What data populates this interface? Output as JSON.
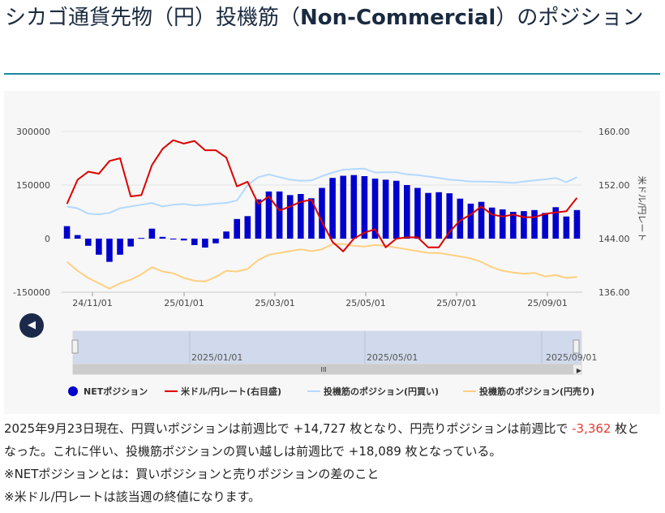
{
  "page": {
    "title_prefix": "シカゴ通貨先物（円）投機筋（",
    "title_bold": "Non-Commercial",
    "title_suffix": "）のポジション"
  },
  "chart_data": {
    "type": "bar+line",
    "x_ticks": [
      "24/11/01",
      "25/01/01",
      "25/03/01",
      "25/05/01",
      "25/07/01",
      "25/09/01"
    ],
    "left_axis": {
      "ticks": [
        "300000",
        "150000",
        "0",
        "-150000"
      ],
      "ylim": [
        -150000,
        300000
      ]
    },
    "right_axis": {
      "ticks": [
        "160.00",
        "152.00",
        "144.00",
        "136.00"
      ],
      "label": "米ドル/円レート",
      "ylim": [
        136,
        160
      ]
    },
    "grid": true,
    "legend_position": "bottom",
    "navigator_labels": [
      "2025/01/01",
      "2025/05/01",
      "2025/09/01"
    ],
    "navigator_handle_glyph": "III",
    "series": [
      {
        "name": "NETポジション",
        "type": "bar",
        "color": "#0000cc",
        "axis": "left",
        "values": [
          35000,
          10000,
          -20000,
          -45000,
          -65000,
          -45000,
          -22000,
          2000,
          28000,
          5000,
          0,
          -5000,
          -18000,
          -25000,
          -13000,
          20000,
          55000,
          63000,
          110000,
          132000,
          132000,
          122000,
          125000,
          113000,
          142000,
          170000,
          176000,
          178000,
          175000,
          168000,
          165000,
          162000,
          150000,
          142000,
          128000,
          130000,
          127000,
          112000,
          98000,
          103000,
          87000,
          82000,
          75000,
          77000,
          80000,
          72000,
          88000,
          62000,
          80000
        ]
      },
      {
        "name": "米ドル/円レート(右目盛)",
        "type": "line",
        "color": "#dd0000",
        "axis": "right",
        "values": [
          149.2,
          152.8,
          154.0,
          153.7,
          155.6,
          156.0,
          150.3,
          150.5,
          155.0,
          157.4,
          158.7,
          158.2,
          158.6,
          157.2,
          157.2,
          156.1,
          151.8,
          152.5,
          149.2,
          150.3,
          148.2,
          148.8,
          149.5,
          149.8,
          146.5,
          143.5,
          142.1,
          144.0,
          144.9,
          145.4,
          142.7,
          144.0,
          144.2,
          144.2,
          142.7,
          142.7,
          145.0,
          146.7,
          147.6,
          148.8,
          147.6,
          147.3,
          147.6,
          147.2,
          147.2,
          147.7,
          147.9,
          148.1,
          150.1
        ]
      },
      {
        "name": "投機筋のポジション(円買い)",
        "type": "line",
        "color": "#b3d9ff",
        "axis": "left",
        "values": [
          90000,
          85000,
          70000,
          68000,
          72000,
          85000,
          90000,
          95000,
          100000,
          90000,
          95000,
          97000,
          93000,
          95000,
          98000,
          100000,
          107000,
          150000,
          172000,
          180000,
          172000,
          165000,
          162000,
          163000,
          175000,
          185000,
          193000,
          195000,
          196000,
          185000,
          186000,
          186000,
          180000,
          178000,
          174000,
          170000,
          165000,
          163000,
          160000,
          160000,
          159000,
          158000,
          156000,
          160000,
          163000,
          166000,
          170000,
          158000,
          172000
        ]
      },
      {
        "name": "投機筋のポジション(円売り)",
        "type": "line",
        "color": "#ffcf80",
        "axis": "left",
        "values": [
          -65000,
          -90000,
          -110000,
          -125000,
          -140000,
          -125000,
          -115000,
          -100000,
          -80000,
          -92000,
          -97000,
          -110000,
          -118000,
          -120000,
          -107000,
          -90000,
          -92000,
          -85000,
          -60000,
          -45000,
          -40000,
          -35000,
          -30000,
          -35000,
          -30000,
          -15000,
          -15000,
          -20000,
          -22000,
          -18000,
          -20000,
          -25000,
          -30000,
          -35000,
          -40000,
          -40000,
          -45000,
          -50000,
          -55000,
          -65000,
          -80000,
          -90000,
          -95000,
          -98000,
          -96000,
          -106000,
          -102000,
          -110000,
          -107000
        ]
      }
    ]
  },
  "description": {
    "line1_a": "2025年9月23日現在、円買いポジションは前週比で +14,727 枚となり、円売りポジションは前週比で ",
    "line1_neg": "-3,362",
    "line1_b": " 枚と",
    "line2": "なった。これに伴い、投機筋ポジションの買い越しは前週比で +18,089 枚となっている。",
    "note1": "※NETポジションとは：買いポジションと売りポジションの差のこと",
    "note2": "※米ドル/円レートは該当週の終値になります。"
  }
}
